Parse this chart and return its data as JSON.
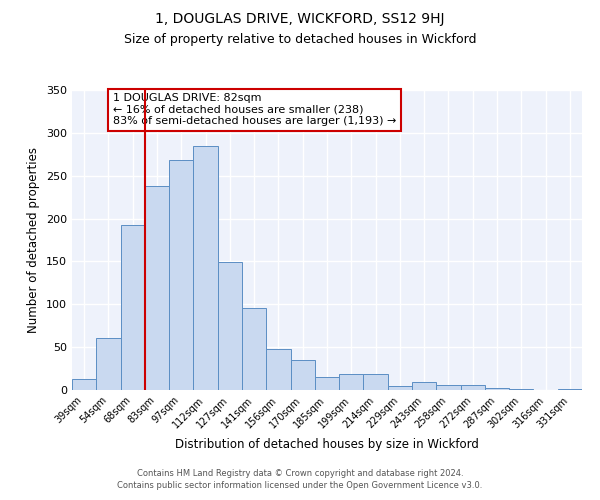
{
  "title": "1, DOUGLAS DRIVE, WICKFORD, SS12 9HJ",
  "subtitle": "Size of property relative to detached houses in Wickford",
  "xlabel": "Distribution of detached houses by size in Wickford",
  "ylabel": "Number of detached properties",
  "bar_labels": [
    "39sqm",
    "54sqm",
    "68sqm",
    "83sqm",
    "97sqm",
    "112sqm",
    "127sqm",
    "141sqm",
    "156sqm",
    "170sqm",
    "185sqm",
    "199sqm",
    "214sqm",
    "229sqm",
    "243sqm",
    "258sqm",
    "272sqm",
    "287sqm",
    "302sqm",
    "316sqm",
    "331sqm"
  ],
  "bar_values": [
    13,
    61,
    192,
    238,
    268,
    285,
    149,
    96,
    48,
    35,
    15,
    19,
    19,
    5,
    9,
    6,
    6,
    2,
    1,
    0,
    1
  ],
  "bar_color": "#c9d9f0",
  "bar_edge_color": "#5b8ec4",
  "vline_x": 2.5,
  "vline_color": "#cc0000",
  "ylim": [
    0,
    350
  ],
  "yticks": [
    0,
    50,
    100,
    150,
    200,
    250,
    300,
    350
  ],
  "annotation_title": "1 DOUGLAS DRIVE: 82sqm",
  "annotation_line1": "← 16% of detached houses are smaller (238)",
  "annotation_line2": "83% of semi-detached houses are larger (1,193) →",
  "annotation_box_color": "#cc0000",
  "footer_line1": "Contains HM Land Registry data © Crown copyright and database right 2024.",
  "footer_line2": "Contains public sector information licensed under the Open Government Licence v3.0.",
  "bg_color": "#eef2fb",
  "title_fontsize": 10,
  "subtitle_fontsize": 9,
  "xlabel_fontsize": 8.5,
  "ylabel_fontsize": 8.5,
  "annotation_fontsize": 8
}
